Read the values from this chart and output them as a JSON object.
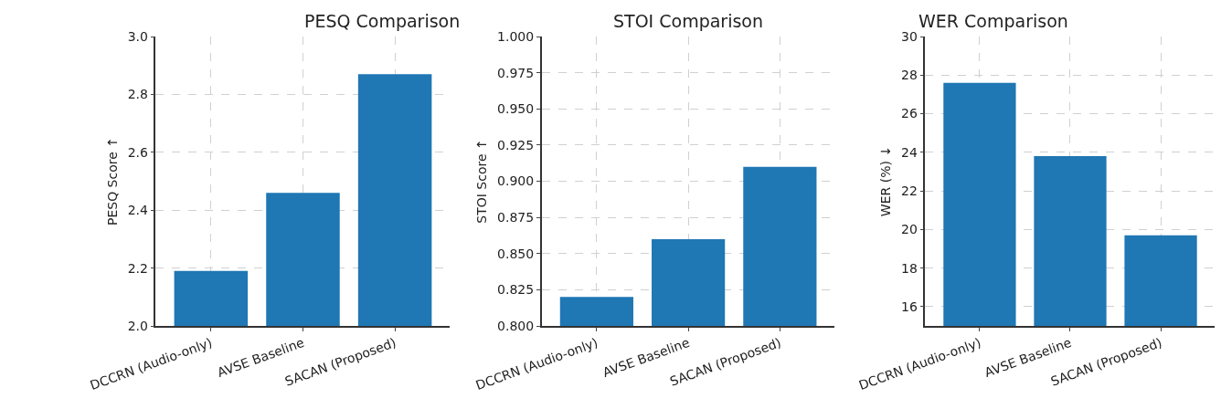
{
  "chart_data": [
    {
      "type": "bar",
      "title": "PESQ Comparison",
      "ylabel": "PESQ Score ↑",
      "categories": [
        "DCCRN (Audio-only)",
        "AVSE Baseline",
        "SACAN (Proposed)"
      ],
      "values": [
        2.19,
        2.46,
        2.87
      ],
      "color": "#1f77b4",
      "ylim": [
        2.0,
        3.0
      ],
      "yticks": [
        {
          "value": 2.0,
          "label": "2.0"
        },
        {
          "value": 2.2,
          "label": "2.2"
        },
        {
          "value": 2.4,
          "label": "2.4"
        },
        {
          "value": 2.6,
          "label": "2.6"
        },
        {
          "value": 2.8,
          "label": "2.8"
        },
        {
          "value": 3.0,
          "label": "3.0"
        }
      ],
      "grid": true
    },
    {
      "type": "bar",
      "title": "STOI Comparison",
      "ylabel": "STOI Score ↑",
      "categories": [
        "DCCRN (Audio-only)",
        "AVSE Baseline",
        "SACAN (Proposed)"
      ],
      "values": [
        0.82,
        0.86,
        0.91
      ],
      "color": "#1f77b4",
      "ylim": [
        0.8,
        1.0
      ],
      "yticks": [
        {
          "value": 0.8,
          "label": "0.800"
        },
        {
          "value": 0.825,
          "label": "0.825"
        },
        {
          "value": 0.85,
          "label": "0.850"
        },
        {
          "value": 0.875,
          "label": "0.875"
        },
        {
          "value": 0.9,
          "label": "0.900"
        },
        {
          "value": 0.925,
          "label": "0.925"
        },
        {
          "value": 0.95,
          "label": "0.950"
        },
        {
          "value": 0.975,
          "label": "0.975"
        },
        {
          "value": 1.0,
          "label": "1.000"
        }
      ],
      "grid": true
    },
    {
      "type": "bar",
      "title": "WER Comparison",
      "ylabel": "WER (%) ↓",
      "categories": [
        "DCCRN (Audio-only)",
        "AVSE Baseline",
        "SACAN (Proposed)"
      ],
      "values": [
        27.6,
        23.8,
        19.7
      ],
      "color": "#1f77b4",
      "ylim": [
        15,
        30
      ],
      "yticks": [
        16,
        18,
        20,
        22,
        24,
        26,
        28,
        30
      ],
      "grid": true
    }
  ]
}
